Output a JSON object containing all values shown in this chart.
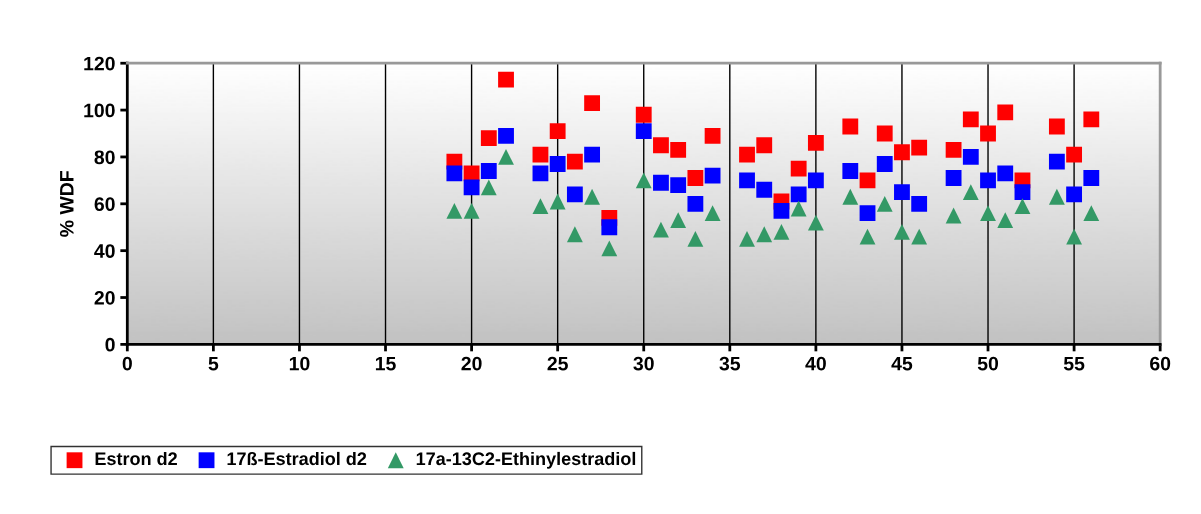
{
  "chart_data": {
    "type": "scatter",
    "ylabel": "% WDF",
    "x": [
      19,
      20,
      21,
      22,
      24,
      25,
      26,
      27,
      28,
      30,
      31,
      32,
      33,
      34,
      36,
      37,
      38,
      39,
      40,
      42,
      43,
      44,
      45,
      46,
      48,
      49,
      50,
      51,
      52,
      54,
      55,
      56
    ],
    "series": [
      {
        "name": "Estron d2",
        "color": "#ff0000",
        "marker": "square",
        "values": [
          78,
          73,
          88,
          113,
          81,
          91,
          78,
          103,
          54,
          98,
          85,
          83,
          71,
          89,
          81,
          85,
          61,
          75,
          86,
          93,
          70,
          90,
          82,
          84,
          83,
          96,
          90,
          99,
          70,
          93,
          81,
          96
        ]
      },
      {
        "name": "17ß-Estradiol d2",
        "color": "#0000ff",
        "marker": "square",
        "values": [
          73,
          67,
          74,
          89,
          73,
          77,
          64,
          81,
          50,
          91,
          69,
          68,
          60,
          72,
          70,
          66,
          57,
          64,
          70,
          74,
          56,
          77,
          65,
          60,
          71,
          80,
          70,
          73,
          65,
          78,
          64,
          71
        ]
      },
      {
        "name": "17a-13C2-Ethinylestradiol",
        "color": "#339966",
        "marker": "triangle",
        "values": [
          57,
          57,
          67,
          80,
          59,
          61,
          47,
          63,
          41,
          70,
          49,
          53,
          45,
          56,
          45,
          47,
          48,
          58,
          52,
          63,
          46,
          60,
          48,
          46,
          55,
          65,
          56,
          53,
          59,
          63,
          46,
          56
        ]
      }
    ],
    "xlim": [
      0,
      60
    ],
    "xticks": [
      0,
      5,
      10,
      15,
      20,
      25,
      30,
      35,
      40,
      45,
      50,
      55,
      60
    ],
    "ylim": [
      0,
      120
    ],
    "yticks": [
      0,
      20,
      40,
      60,
      80,
      100,
      120
    ],
    "grid": "x",
    "legend": "bottom left"
  }
}
